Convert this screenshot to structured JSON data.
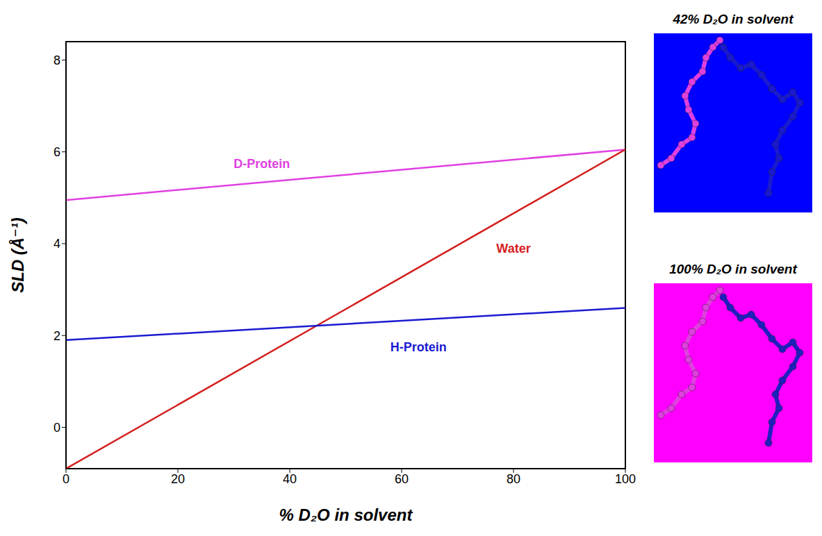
{
  "chart_data": {
    "type": "line",
    "xlabel": "% D₂O in solvent",
    "ylabel": "SLD (Å⁻¹)",
    "x": [
      0,
      100
    ],
    "xlim": [
      0,
      100
    ],
    "xticks": [
      0,
      20,
      40,
      60,
      80,
      100
    ],
    "ylim": [
      -0.9,
      8.4
    ],
    "yticks": [
      0,
      2,
      4,
      6,
      8
    ],
    "grid": false,
    "series": [
      {
        "name": "D-Protein",
        "color": "#e040e0",
        "values": [
          4.95,
          6.05
        ],
        "label": {
          "x": 35,
          "y": 5.75
        }
      },
      {
        "name": "Water",
        "color": "#d42020",
        "values": [
          -0.9,
          6.05
        ],
        "label": {
          "x": 80,
          "y": 3.9
        }
      },
      {
        "name": "H-Protein",
        "color": "#1a1ad0",
        "values": [
          1.9,
          2.6
        ],
        "label": {
          "x": 63,
          "y": 1.75
        }
      }
    ]
  },
  "insets": [
    {
      "title": "42% D₂O in solvent",
      "background": "#0000ff"
    },
    {
      "title": "100% D₂O in solvent",
      "background": "#ff00ff"
    }
  ]
}
